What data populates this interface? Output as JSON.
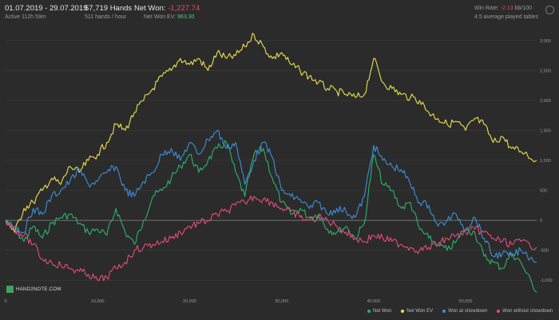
{
  "header": {
    "date_range": "01.07.2019 - 29.07.2019",
    "active": "Active 112h 59m",
    "hands": "57,719 Hands",
    "hands_rate": "511 hands / hour",
    "net_won_label": "Net Won:",
    "net_won_value": "-1,227.74",
    "net_won_ev_label": "Net Won EV:",
    "net_won_ev_value": "963.30",
    "win_rate_label": "Win Rate:",
    "win_rate_value": "-2.13",
    "win_rate_unit": "bb/100",
    "tables": "4.5 average played tables"
  },
  "logo_text": "HAND2NOTE.COM",
  "chart_data": {
    "type": "line",
    "x_ticks": [
      "0",
      "10,000",
      "20,000",
      "30,000",
      "40,000",
      "50,000"
    ],
    "x_tick_values": [
      0,
      10000,
      20000,
      30000,
      40000,
      50000
    ],
    "y_ticks": [
      "3,000",
      "2,500",
      "2,000",
      "1,500",
      "1,000",
      "500",
      "0",
      "-500",
      "-1,000"
    ],
    "y_tick_values": [
      3000,
      2500,
      2000,
      1500,
      1000,
      500,
      0,
      -500,
      -1000
    ],
    "xlim": [
      0,
      57719
    ],
    "ylim": [
      -1250,
      3250
    ],
    "grid": true,
    "legend_position": "bottom-right",
    "series": [
      {
        "name": "Net Won",
        "color": "#2ab36f",
        "x": [
          0,
          1000,
          2000,
          3000,
          4000,
          5000,
          6000,
          7000,
          8000,
          9000,
          10000,
          11000,
          12000,
          13000,
          14000,
          15000,
          16000,
          17000,
          18000,
          19000,
          20000,
          21000,
          22000,
          23000,
          24000,
          25000,
          26000,
          27000,
          28000,
          29000,
          30000,
          31000,
          32000,
          33000,
          34000,
          35000,
          36000,
          37000,
          38000,
          39000,
          40000,
          41000,
          42000,
          43000,
          44000,
          45000,
          46000,
          47000,
          48000,
          49000,
          50000,
          51000,
          52000,
          53000,
          54000,
          55000,
          56000,
          57719
        ],
        "y": [
          0,
          -150,
          -350,
          -100,
          -300,
          -50,
          50,
          100,
          -50,
          -200,
          -150,
          -250,
          200,
          -200,
          -400,
          0,
          400,
          500,
          700,
          900,
          1100,
          800,
          1000,
          1200,
          1300,
          800,
          400,
          1100,
          1200,
          700,
          300,
          100,
          200,
          50,
          100,
          -150,
          -200,
          -100,
          -300,
          -50,
          1100,
          600,
          500,
          200,
          300,
          -150,
          -300,
          -400,
          -500,
          -350,
          -150,
          -200,
          -600,
          -700,
          -800,
          -550,
          -700,
          -1200
        ]
      },
      {
        "name": "Net Won  EV",
        "color": "#e9e24f",
        "x": [
          0,
          1000,
          2000,
          3000,
          4000,
          5000,
          6000,
          7000,
          8000,
          9000,
          10000,
          11000,
          12000,
          13000,
          14000,
          15000,
          16000,
          17000,
          18000,
          19000,
          20000,
          21000,
          22000,
          23000,
          24000,
          25000,
          26000,
          27000,
          28000,
          29000,
          30000,
          31000,
          32000,
          33000,
          34000,
          35000,
          36000,
          37000,
          38000,
          39000,
          40000,
          41000,
          42000,
          43000,
          44000,
          45000,
          46000,
          47000,
          48000,
          49000,
          50000,
          51000,
          52000,
          53000,
          54000,
          55000,
          56000,
          57719
        ],
        "y": [
          0,
          -200,
          200,
          300,
          500,
          700,
          600,
          900,
          800,
          1000,
          1100,
          1300,
          1600,
          1500,
          1800,
          2000,
          2200,
          2400,
          2500,
          2700,
          2600,
          2700,
          2500,
          2800,
          2700,
          2750,
          2900,
          3100,
          2900,
          2700,
          2800,
          2600,
          2500,
          2400,
          2300,
          2200,
          2150,
          2100,
          2050,
          2100,
          2700,
          2300,
          2200,
          2100,
          2050,
          2000,
          1800,
          1700,
          1600,
          1650,
          1500,
          1700,
          1600,
          1300,
          1400,
          1200,
          1150,
          1000
        ]
      },
      {
        "name": "Won at showdown",
        "color": "#3e8fd8",
        "x": [
          0,
          1000,
          2000,
          3000,
          4000,
          5000,
          6000,
          7000,
          8000,
          9000,
          10000,
          11000,
          12000,
          13000,
          14000,
          15000,
          16000,
          17000,
          18000,
          19000,
          20000,
          21000,
          22000,
          23000,
          24000,
          25000,
          26000,
          27000,
          28000,
          29000,
          30000,
          31000,
          32000,
          33000,
          34000,
          35000,
          36000,
          37000,
          38000,
          39000,
          40000,
          41000,
          42000,
          43000,
          44000,
          45000,
          46000,
          47000,
          48000,
          49000,
          50000,
          51000,
          52000,
          53000,
          54000,
          55000,
          56000,
          57719
        ],
        "y": [
          0,
          -100,
          -200,
          200,
          100,
          400,
          500,
          650,
          850,
          600,
          650,
          800,
          900,
          500,
          400,
          650,
          800,
          1100,
          1200,
          1000,
          1300,
          1100,
          1350,
          1500,
          1200,
          1300,
          600,
          1000,
          1300,
          1050,
          500,
          400,
          350,
          200,
          300,
          100,
          200,
          150,
          50,
          400,
          1250,
          1000,
          900,
          850,
          600,
          300,
          250,
          -100,
          0,
          100,
          -150,
          50,
          -300,
          -600,
          -550,
          -600,
          -500,
          -700
        ]
      },
      {
        "name": "Won without showdown",
        "color": "#e54d79",
        "x": [
          0,
          1000,
          2000,
          3000,
          4000,
          5000,
          6000,
          7000,
          8000,
          9000,
          10000,
          11000,
          12000,
          13000,
          14000,
          15000,
          16000,
          17000,
          18000,
          19000,
          20000,
          21000,
          22000,
          23000,
          24000,
          25000,
          26000,
          27000,
          28000,
          29000,
          30000,
          31000,
          32000,
          33000,
          34000,
          35000,
          36000,
          37000,
          38000,
          39000,
          40000,
          41000,
          42000,
          43000,
          44000,
          45000,
          46000,
          47000,
          48000,
          49000,
          50000,
          51000,
          52000,
          53000,
          54000,
          55000,
          56000,
          57719
        ],
        "y": [
          0,
          -150,
          -250,
          -400,
          -650,
          -700,
          -750,
          -800,
          -850,
          -900,
          -1000,
          -950,
          -800,
          -700,
          -500,
          -450,
          -400,
          -350,
          -300,
          -200,
          -100,
          -50,
          0,
          100,
          150,
          250,
          300,
          400,
          350,
          300,
          200,
          150,
          50,
          0,
          50,
          0,
          -100,
          -200,
          -300,
          -350,
          -250,
          -300,
          -350,
          -400,
          -450,
          -500,
          -450,
          -400,
          -300,
          -250,
          -200,
          -150,
          -200,
          -300,
          -350,
          -400,
          -350,
          -450
        ]
      }
    ]
  },
  "colors": {
    "background": "#2b2b2b",
    "grid": "#3d3d3d",
    "zero_line": "#8a8a8a"
  }
}
